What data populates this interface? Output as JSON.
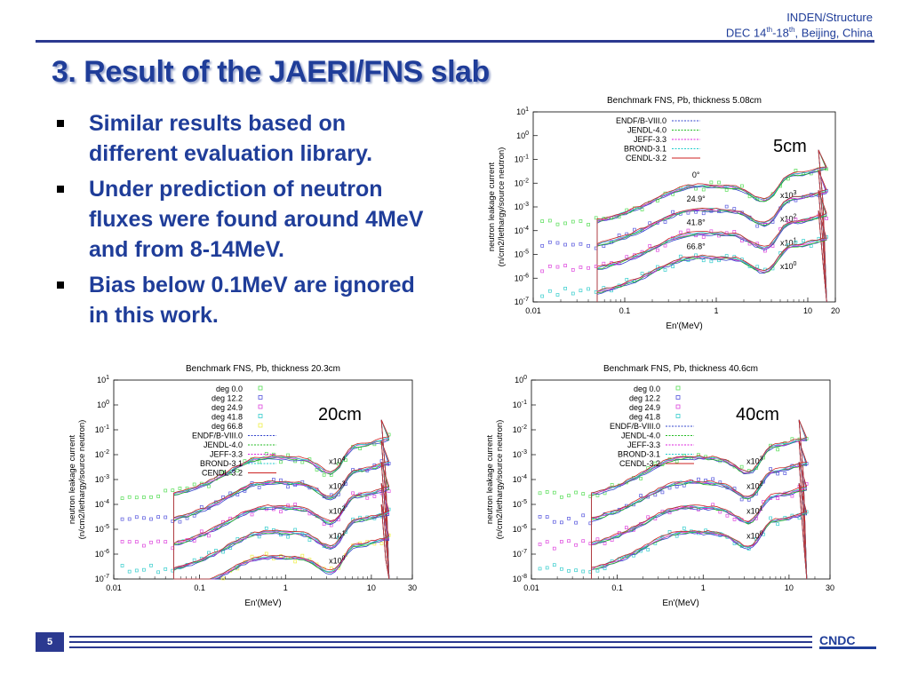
{
  "header": {
    "org": "INDEN/Structure",
    "date_prefix": "DEC 14",
    "sup1": "th",
    "date_mid": "-18",
    "sup2": "th",
    "location": ",  Beijing, China"
  },
  "slide": {
    "title": "3. Result of the JAERI/FNS slab",
    "bullets": [
      "Similar results based on different evaluation library.",
      "Under prediction of neutron fluxes were found around 4MeV and from 8-14MeV.",
      "Bias below 0.1MeV are ignored in this work."
    ],
    "page_number": "5"
  },
  "colors": {
    "title": "#1f3d99",
    "rule": "#2b3990",
    "ENDF": "#3344cc",
    "JENDL": "#22bb22",
    "JEFF": "#dd22dd",
    "BROND": "#22cccc",
    "CENDL": "#cc2222",
    "exp_0": "#55dd55",
    "exp_1": "#5555dd",
    "exp_2": "#dd44dd",
    "exp_3": "#33cccc",
    "exp_4": "#eeee44"
  },
  "chart_data": [
    {
      "type": "line",
      "title": "Benchmark FNS, Pb, thickness 5.08cm",
      "xlabel": "En'(MeV)",
      "ylabel_line1": "neutron leakage current",
      "ylabel_line2": "(n/cm2/lethargy/source neutron)",
      "xlim": [
        0.01,
        20
      ],
      "ylim": [
        1e-07,
        10
      ],
      "xscale": "log",
      "yscale": "log",
      "xticks": [
        "0.01",
        "0.1",
        "1",
        "10",
        "20"
      ],
      "yticks": [
        "10-7",
        "10-6",
        "10-5",
        "10-4",
        "10-3",
        "10-2",
        "10-1",
        "100",
        "101"
      ],
      "thickness_label": "5cm",
      "legend": [
        "ENDF/B-VIII.0",
        "JENDL-4.0",
        "JEFF-3.3",
        "BROND-3.1",
        "CENDL-3.2"
      ],
      "legend_position": "top-left",
      "angles": [
        {
          "label": "0°",
          "scale": "x103",
          "level": -2.0
        },
        {
          "label": "24.9°",
          "scale": "x102",
          "level": -3.0
        },
        {
          "label": "41.8°",
          "scale": "x101",
          "level": -4.0
        },
        {
          "label": "66.8°",
          "scale": "x100",
          "level": -5.0
        }
      ]
    },
    {
      "type": "line",
      "title": "Benchmark FNS, Pb, thickness 20.3cm",
      "xlabel": "En'(MeV)",
      "ylabel_line1": "neutron leakage current",
      "ylabel_line2": "(n/cm2/lethargy/source neutron)",
      "xlim": [
        0.01,
        30
      ],
      "ylim": [
        1e-07,
        10
      ],
      "xscale": "log",
      "yscale": "log",
      "xticks": [
        "0.01",
        "0.1",
        "1",
        "10",
        "30"
      ],
      "yticks": [
        "10-7",
        "10-6",
        "10-5",
        "10-4",
        "10-3",
        "10-2",
        "10-1",
        "100",
        "101"
      ],
      "thickness_label": "20cm",
      "legend": [
        "deg  0.0",
        "deg 12.2",
        "deg 24.9",
        "deg 41.8",
        "deg 66.8",
        "ENDF/B-VIII.0",
        "JENDL-4.0",
        "JEFF-3.3",
        "BROND-3.1",
        "CENDL-3.2"
      ],
      "legend_position": "top-left",
      "angles": [
        {
          "label": "",
          "scale": "x104",
          "level": -2.0
        },
        {
          "label": "",
          "scale": "x103",
          "level": -3.0
        },
        {
          "label": "",
          "scale": "x102",
          "level": -4.0
        },
        {
          "label": "",
          "scale": "x101",
          "level": -5.0
        },
        {
          "label": "",
          "scale": "x100",
          "level": -6.0
        }
      ]
    },
    {
      "type": "line",
      "title": "Benchmark FNS, Pb, thickness 40.6cm",
      "xlabel": "En'(MeV)",
      "ylabel_line1": "neutron leakage current",
      "ylabel_line2": "(n/cm2/lethargy/source neutron)",
      "xlim": [
        0.01,
        30
      ],
      "ylim": [
        1e-08,
        1
      ],
      "xscale": "log",
      "yscale": "log",
      "xticks": [
        "0.01",
        "0.1",
        "1",
        "10",
        "30"
      ],
      "yticks": [
        "10-8",
        "10-7",
        "10-6",
        "10-5",
        "10-4",
        "10-3",
        "10-2",
        "10-1",
        "100"
      ],
      "thickness_label": "40cm",
      "legend": [
        "deg  0.0",
        "deg 12.2",
        "deg 24.9",
        "deg 41.8",
        "ENDF/B-VIII.0",
        "JENDL-4.0",
        "JEFF-3.3",
        "BROND-3.1",
        "CENDL-3.2"
      ],
      "legend_position": "top-left",
      "angles": [
        {
          "label": "",
          "scale": "x103",
          "level": -3.0
        },
        {
          "label": "",
          "scale": "x102",
          "level": -4.0
        },
        {
          "label": "",
          "scale": "x101",
          "level": -5.0
        },
        {
          "label": "",
          "scale": "x100",
          "level": -6.0
        }
      ]
    }
  ]
}
